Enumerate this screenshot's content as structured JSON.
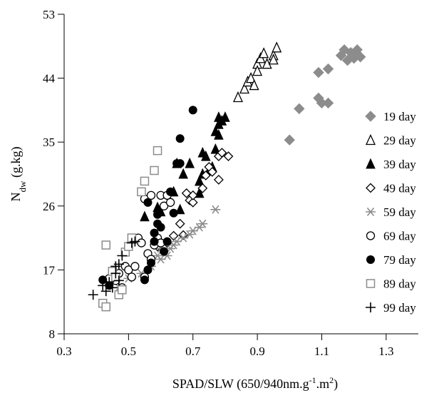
{
  "chart_data": {
    "type": "scatter",
    "title": "",
    "xlabel": "SPAD/SLW (650/940nm.g",
    "xlabel_sup": "-1",
    "xlabel_tail": ".m",
    "xlabel_sup2": "2",
    "xlabel_close": ")",
    "ylabel_main": "N",
    "ylabel_sub": "dw",
    "ylabel_tail": " (g.kg)",
    "xlim": [
      0.3,
      1.4
    ],
    "ylim": [
      8,
      53
    ],
    "xticks": [
      "0.3",
      "0.5",
      "0.7",
      "0.9",
      "1.1",
      "1.3"
    ],
    "yticks": [
      "8",
      "17",
      "26",
      "35",
      "44",
      "53"
    ],
    "grid": false,
    "legend_position": "right",
    "series": [
      {
        "name": "19 day",
        "marker": "diamond-filled",
        "color": "#8c8c8c",
        "points": [
          [
            1.0,
            35.3
          ],
          [
            1.03,
            39.7
          ],
          [
            1.09,
            44.8
          ],
          [
            1.12,
            45.3
          ],
          [
            1.09,
            41.2
          ],
          [
            1.1,
            40.5
          ],
          [
            1.12,
            40.5
          ],
          [
            1.17,
            48.0
          ],
          [
            1.19,
            47.6
          ],
          [
            1.21,
            48.0
          ],
          [
            1.2,
            47.0
          ],
          [
            1.22,
            47.0
          ],
          [
            1.16,
            47.2
          ],
          [
            1.18,
            46.5
          ],
          [
            1.2,
            46.8
          ]
        ]
      },
      {
        "name": "29 day",
        "marker": "triangle-open",
        "color": "#000000",
        "points": [
          [
            0.84,
            41.3
          ],
          [
            0.86,
            42.5
          ],
          [
            0.87,
            43.5
          ],
          [
            0.88,
            44.0
          ],
          [
            0.89,
            43.0
          ],
          [
            0.9,
            46.0
          ],
          [
            0.91,
            46.8
          ],
          [
            0.93,
            46.0
          ],
          [
            0.95,
            47.2
          ],
          [
            0.96,
            48.3
          ],
          [
            0.95,
            46.6
          ],
          [
            0.92,
            47.5
          ],
          [
            0.9,
            45.0
          ]
        ]
      },
      {
        "name": "39 day",
        "marker": "triangle-filled",
        "color": "#000000",
        "points": [
          [
            0.55,
            24.5
          ],
          [
            0.59,
            25.8
          ],
          [
            0.6,
            25.2
          ],
          [
            0.64,
            28.0
          ],
          [
            0.65,
            32.0
          ],
          [
            0.67,
            30.5
          ],
          [
            0.69,
            32.0
          ],
          [
            0.72,
            27.8
          ],
          [
            0.72,
            29.5
          ],
          [
            0.73,
            30.5
          ],
          [
            0.73,
            33.5
          ],
          [
            0.74,
            33.0
          ],
          [
            0.75,
            31.0
          ],
          [
            0.76,
            31.5
          ],
          [
            0.77,
            34.0
          ],
          [
            0.77,
            36.5
          ],
          [
            0.78,
            37.5
          ],
          [
            0.78,
            38.5
          ],
          [
            0.79,
            38.0
          ],
          [
            0.8,
            38.5
          ],
          [
            0.78,
            36.0
          ],
          [
            0.66,
            25.5
          ]
        ]
      },
      {
        "name": "49 day",
        "marker": "diamond-open",
        "color": "#000000",
        "points": [
          [
            0.59,
            20.3
          ],
          [
            0.62,
            20.8
          ],
          [
            0.64,
            21.8
          ],
          [
            0.66,
            23.5
          ],
          [
            0.67,
            21.9
          ],
          [
            0.69,
            26.8
          ],
          [
            0.7,
            26.5
          ],
          [
            0.7,
            27.5
          ],
          [
            0.73,
            28.5
          ],
          [
            0.74,
            30.3
          ],
          [
            0.75,
            31.5
          ],
          [
            0.76,
            30.8
          ],
          [
            0.78,
            29.7
          ],
          [
            0.78,
            33.0
          ],
          [
            0.79,
            33.5
          ],
          [
            0.81,
            33.0
          ],
          [
            0.68,
            27.8
          ]
        ]
      },
      {
        "name": "59 day",
        "marker": "asterisk",
        "color": "#8c8c8c",
        "points": [
          [
            0.47,
            14.5
          ],
          [
            0.5,
            15.8
          ],
          [
            0.54,
            16.5
          ],
          [
            0.57,
            17.5
          ],
          [
            0.59,
            19.0
          ],
          [
            0.6,
            18.5
          ],
          [
            0.62,
            19.0
          ],
          [
            0.63,
            20.0
          ],
          [
            0.64,
            20.5
          ],
          [
            0.65,
            21.0
          ],
          [
            0.67,
            21.5
          ],
          [
            0.69,
            22.0
          ],
          [
            0.7,
            22.5
          ],
          [
            0.72,
            23.0
          ],
          [
            0.73,
            23.5
          ],
          [
            0.77,
            25.5
          ],
          [
            0.6,
            20.0
          ]
        ]
      },
      {
        "name": "69 day",
        "marker": "circle-open",
        "color": "#000000",
        "points": [
          [
            0.44,
            15.8
          ],
          [
            0.47,
            16.5
          ],
          [
            0.49,
            17.5
          ],
          [
            0.5,
            17.0
          ],
          [
            0.51,
            16.0
          ],
          [
            0.52,
            17.5
          ],
          [
            0.53,
            21.5
          ],
          [
            0.54,
            20.8
          ],
          [
            0.55,
            16.0
          ],
          [
            0.56,
            19.3
          ],
          [
            0.57,
            18.5
          ],
          [
            0.58,
            20.5
          ],
          [
            0.59,
            21.5
          ],
          [
            0.6,
            20.8
          ],
          [
            0.6,
            27.5
          ],
          [
            0.61,
            26.0
          ],
          [
            0.62,
            27.5
          ],
          [
            0.63,
            26.5
          ],
          [
            0.55,
            27.0
          ],
          [
            0.57,
            27.5
          ],
          [
            0.48,
            14.5
          ],
          [
            0.46,
            15.5
          ]
        ]
      },
      {
        "name": "79 day",
        "marker": "circle-filled",
        "color": "#000000",
        "points": [
          [
            0.42,
            15.6
          ],
          [
            0.44,
            14.8
          ],
          [
            0.55,
            15.6
          ],
          [
            0.56,
            17.0
          ],
          [
            0.57,
            18.0
          ],
          [
            0.58,
            21.0
          ],
          [
            0.58,
            22.2
          ],
          [
            0.59,
            24.8
          ],
          [
            0.6,
            23.0
          ],
          [
            0.61,
            19.6
          ],
          [
            0.62,
            21.0
          ],
          [
            0.63,
            28.0
          ],
          [
            0.64,
            25.0
          ],
          [
            0.65,
            32.0
          ],
          [
            0.66,
            32.0
          ],
          [
            0.66,
            35.5
          ],
          [
            0.7,
            39.5
          ],
          [
            0.56,
            26.5
          ],
          [
            0.59,
            23.5
          ]
        ]
      },
      {
        "name": "89 day",
        "marker": "square-open",
        "color": "#8c8c8c",
        "points": [
          [
            0.42,
            12.3
          ],
          [
            0.43,
            11.8
          ],
          [
            0.43,
            20.5
          ],
          [
            0.45,
            16.8
          ],
          [
            0.47,
            13.5
          ],
          [
            0.48,
            14.2
          ],
          [
            0.49,
            19.5
          ],
          [
            0.5,
            20.3
          ],
          [
            0.51,
            21.5
          ],
          [
            0.54,
            28.0
          ],
          [
            0.55,
            29.5
          ],
          [
            0.58,
            31.0
          ],
          [
            0.59,
            33.8
          ],
          [
            0.46,
            16.0
          ]
        ]
      },
      {
        "name": "99 day",
        "marker": "plus",
        "color": "#000000",
        "points": [
          [
            0.39,
            13.5
          ],
          [
            0.42,
            14.8
          ],
          [
            0.43,
            14.0
          ],
          [
            0.44,
            15.3
          ],
          [
            0.45,
            14.5
          ],
          [
            0.46,
            16.5
          ],
          [
            0.46,
            17.5
          ],
          [
            0.47,
            17.8
          ],
          [
            0.48,
            19.0
          ],
          [
            0.51,
            20.8
          ],
          [
            0.52,
            21.0
          ],
          [
            0.47,
            15.5
          ]
        ]
      }
    ]
  }
}
